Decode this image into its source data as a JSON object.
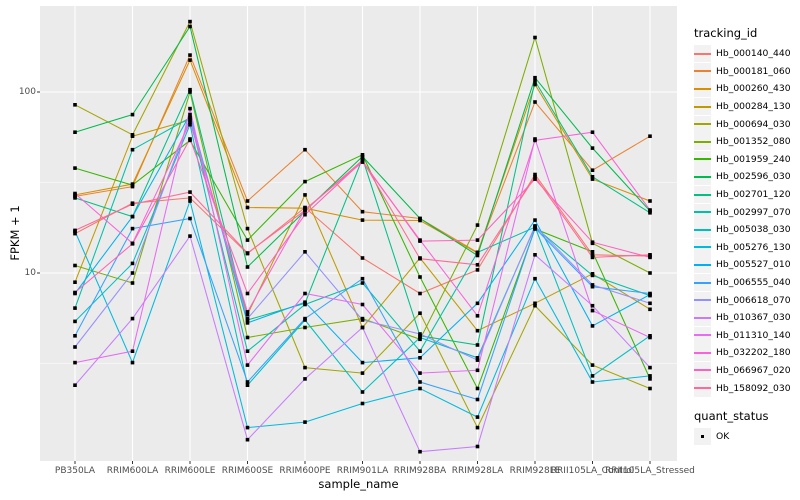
{
  "chart_data": {
    "type": "line",
    "title": "",
    "xlabel": "sample_name",
    "ylabel": "FPKM + 1",
    "y_scale": "log10",
    "ylim": [
      0.92,
      300
    ],
    "grid": true,
    "panel_bg": "#EBEBEB",
    "grid_color": "#FFFFFF",
    "point_color": "#000000",
    "legend_position": "right",
    "legend_title": "tracking_id",
    "legend2": {
      "title": "quant_status",
      "items": [
        "OK"
      ]
    },
    "y_major_ticks": [
      {
        "value": 100,
        "label": "100"
      },
      {
        "value": 10,
        "label": "10"
      }
    ],
    "y_minor_gridlines": [
      31.62,
      3.162
    ],
    "categories": [
      "PB350LA",
      "RRIM600LA",
      "RRIM600LE",
      "RRIM600SE",
      "RRIM600PE",
      "RRIM901LA",
      "RRIM928BA",
      "RRIM928LA",
      "RRIM928LE",
      "RRII105LA_Control",
      "RRII105LA_Stressed"
    ],
    "series": [
      {
        "name": "Hb_000140_440",
        "color": "#F8766D",
        "values": [
          16.5,
          24.3,
          26,
          12.8,
          23,
          12.1,
          7.7,
          10.4,
          35,
          12.6,
          12.4
        ]
      },
      {
        "name": "Hb_000181_060",
        "color": "#EA8331",
        "values": [
          26.5,
          30,
          160,
          25,
          48,
          21.8,
          20,
          13,
          88,
          37,
          57
        ]
      },
      {
        "name": "Hb_000260_430",
        "color": "#D89000",
        "values": [
          27,
          31,
          150,
          23,
          22.8,
          19.6,
          19.5,
          12.9,
          110,
          33,
          25
        ]
      },
      {
        "name": "Hb_000284_130",
        "color": "#C09B00",
        "values": [
          8.9,
          57,
          70,
          5.9,
          27,
          5,
          12.1,
          4.8,
          6.8,
          9.9,
          6.3
        ]
      },
      {
        "name": "Hb_000694_030",
        "color": "#A3A500",
        "values": [
          85,
          58,
          245,
          17.6,
          3,
          2.8,
          6,
          1.4,
          6.6,
          3.1,
          2.3
        ]
      },
      {
        "name": "Hb_001352_080",
        "color": "#7CAE00",
        "values": [
          11,
          8.8,
          100,
          4.4,
          5,
          5.6,
          4.3,
          18.4,
          200,
          14.6,
          10
        ]
      },
      {
        "name": "Hb_001959_240",
        "color": "#39B600",
        "values": [
          38,
          30.6,
          54,
          15.2,
          32,
          45,
          9.5,
          2.3,
          17.5,
          13.1,
          2.6
        ]
      },
      {
        "name": "Hb_002596_030",
        "color": "#00BB4E",
        "values": [
          60,
          75,
          230,
          10.8,
          22,
          44,
          20,
          12.5,
          120,
          49,
          22
        ]
      },
      {
        "name": "Hb_002701_120",
        "color": "#00C087",
        "values": [
          26,
          20.5,
          103,
          5.5,
          6.8,
          43,
          4.5,
          4,
          115,
          34,
          21.5
        ]
      },
      {
        "name": "Hb_002997_070",
        "color": "#00C1A9",
        "values": [
          6.4,
          48,
          72,
          3.7,
          6.7,
          8.8,
          3.7,
          13,
          17.9,
          9.7,
          7.5
        ]
      },
      {
        "name": "Hb_005038_030",
        "color": "#00BFC4",
        "values": [
          5.4,
          11.3,
          66,
          2.4,
          5.5,
          2.2,
          4.4,
          3.4,
          18,
          2.7,
          4.5
        ]
      },
      {
        "name": "Hb_005276_130",
        "color": "#00BAE0",
        "values": [
          17,
          3.2,
          25,
          1.4,
          1.5,
          1.9,
          2.3,
          1.6,
          9.3,
          2.5,
          2.7
        ]
      },
      {
        "name": "Hb_005527_010",
        "color": "#00B0F6",
        "values": [
          7.7,
          20.5,
          75,
          5.3,
          6.9,
          3.2,
          3.4,
          6.8,
          19.6,
          5.1,
          7.6
        ]
      },
      {
        "name": "Hb_006555_040",
        "color": "#35A2FF",
        "values": [
          4.5,
          17.6,
          20,
          2.5,
          5.6,
          9.3,
          2.5,
          2,
          17.7,
          8.4,
          7.7
        ]
      },
      {
        "name": "Hb_006618_070",
        "color": "#9590FF",
        "values": [
          3.9,
          10,
          72,
          5.6,
          13.1,
          5.5,
          4.6,
          3.3,
          18.2,
          8.6,
          6.8
        ]
      },
      {
        "name": "Hb_010367_030",
        "color": "#C77CFF",
        "values": [
          2.4,
          5.6,
          16,
          1.2,
          2.6,
          5,
          1.03,
          1.1,
          12.6,
          6.6,
          3
        ]
      },
      {
        "name": "Hb_011310_140",
        "color": "#E76BF3",
        "values": [
          3.2,
          3.7,
          81,
          3.1,
          7.7,
          6.7,
          2.8,
          2.9,
          55,
          6.2,
          4.4
        ]
      },
      {
        "name": "Hb_032202_180",
        "color": "#FA62DB",
        "values": [
          27.5,
          14.6,
          68,
          6.1,
          22.5,
          41,
          15.2,
          5.8,
          54,
          60,
          22.3
        ]
      },
      {
        "name": "Hb_066967_020",
        "color": "#FF62BC",
        "values": [
          7.8,
          14.5,
          55,
          7.7,
          21,
          41.5,
          15,
          15.2,
          33,
          14.8,
          12.2
        ]
      },
      {
        "name": "Hb_158092_030",
        "color": "#FF6A98",
        "values": [
          17.2,
          24,
          28,
          12.9,
          22.2,
          42,
          12,
          11.1,
          34,
          12.2,
          12.6
        ]
      }
    ]
  }
}
